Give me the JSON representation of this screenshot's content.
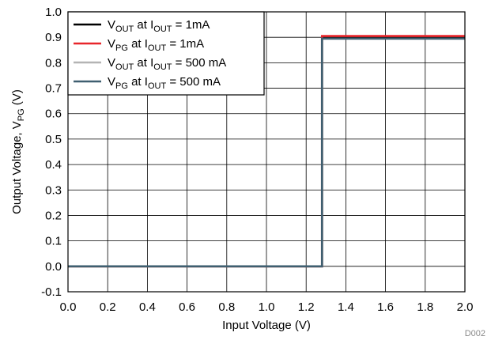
{
  "chart_data": {
    "type": "line",
    "xlabel": "Input Voltage (V)",
    "ylabel": {
      "main": "Output Voltage, V",
      "sub": "PG",
      "end": " (V)"
    },
    "xlim": [
      0.0,
      2.0
    ],
    "ylim": [
      -0.1,
      1.0
    ],
    "x_ticks": [
      "0.0",
      "0.2",
      "0.4",
      "0.6",
      "0.8",
      "1.0",
      "1.2",
      "1.4",
      "1.6",
      "1.8",
      "2.0"
    ],
    "y_ticks": [
      "1.0",
      "0.9",
      "0.8",
      "0.7",
      "0.6",
      "0.5",
      "0.4",
      "0.3",
      "0.2",
      "0.1",
      "0.0",
      "-0.1"
    ],
    "grid": true,
    "legend_position": "top-left",
    "series": [
      {
        "name": {
          "v": "V",
          "vs": "OUT",
          "at": " at I",
          "is": "OUT",
          "rest": " = 1mA"
        },
        "color": "#000000",
        "x": [
          0.0,
          1.28,
          1.28,
          2.0
        ],
        "y": [
          0.0,
          0.0,
          0.9,
          0.9
        ]
      },
      {
        "name": {
          "v": "V",
          "vs": "PG",
          "at": " at I",
          "is": "OUT",
          "rest": " = 1mA"
        },
        "color": "#e8262b",
        "x": [
          0.0,
          1.28,
          1.28,
          2.0
        ],
        "y": [
          0.0,
          0.0,
          0.905,
          0.905
        ]
      },
      {
        "name": {
          "v": "V",
          "vs": "OUT",
          "at": " at I",
          "is": "OUT",
          "rest": " = 500 mA"
        },
        "color": "#b4b4b4",
        "x": [
          0.0,
          1.28,
          1.28,
          2.0
        ],
        "y": [
          0.0,
          0.0,
          0.895,
          0.895
        ]
      },
      {
        "name": {
          "v": "V",
          "vs": "PG",
          "at": " at I",
          "is": "OUT",
          "rest": " = 500 mA"
        },
        "color": "#3f5f70",
        "x": [
          0.0,
          1.28,
          1.28,
          2.0
        ],
        "y": [
          0.0,
          0.0,
          0.895,
          0.895
        ]
      }
    ],
    "note": "D002"
  }
}
